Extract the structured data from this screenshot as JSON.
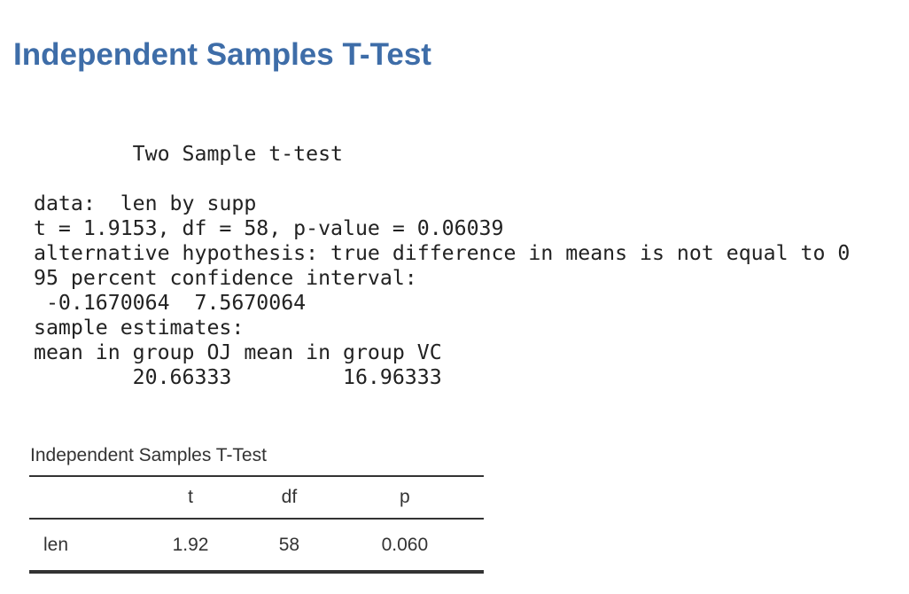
{
  "title": "Independent Samples T-Test",
  "console": {
    "lines": [
      "        Two Sample t-test",
      "",
      "data:  len by supp",
      "t = 1.9153, df = 58, p-value = 0.06039",
      "alternative hypothesis: true difference in means is not equal to 0",
      "95 percent confidence interval:",
      " -0.1670064  7.5670064",
      "sample estimates:",
      "mean in group OJ mean in group VC",
      "        20.66333         16.96333"
    ]
  },
  "table": {
    "title": "Independent Samples T-Test",
    "headers": [
      "",
      "t",
      "df",
      "p"
    ],
    "rows": [
      [
        "len",
        "1.92",
        "58",
        "0.060"
      ]
    ]
  },
  "colors": {
    "title": "#3e6da8"
  }
}
